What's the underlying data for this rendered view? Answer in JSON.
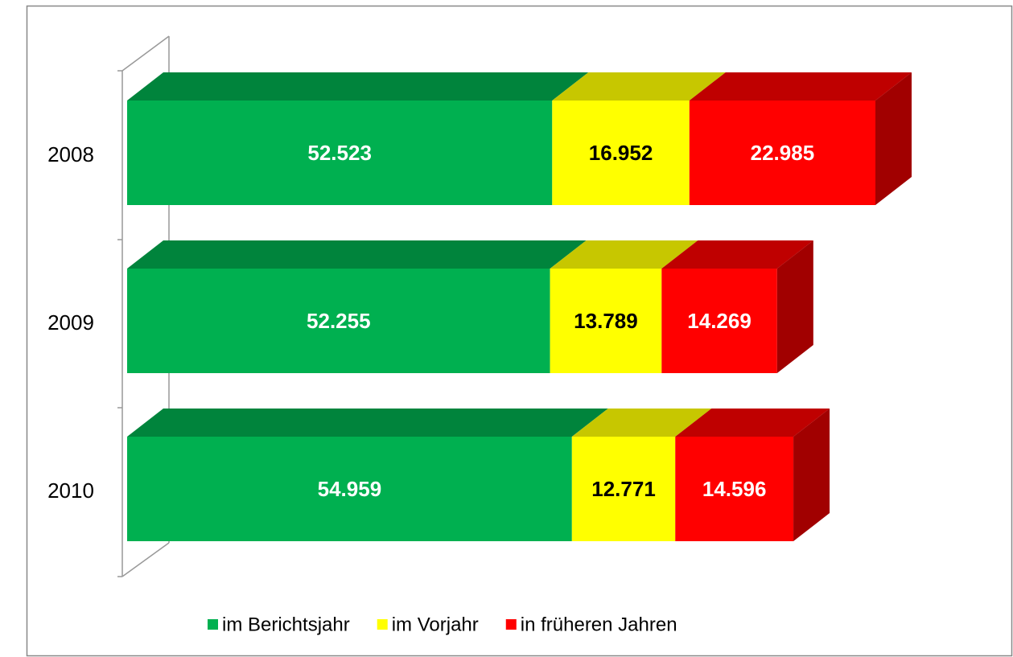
{
  "chart_data": {
    "type": "bar",
    "orientation": "horizontal",
    "stacked": true,
    "three_d": true,
    "categories": [
      "2008",
      "2009",
      "2010"
    ],
    "series": [
      {
        "name": "im Berichtsjahr",
        "color": "#00b050",
        "values": [
          52523,
          52255,
          54959
        ],
        "value_labels": [
          "52.523",
          "52.255",
          "54.959"
        ],
        "label_color": "#ffffff"
      },
      {
        "name": "im Vorjahr",
        "color": "#ffff00",
        "values": [
          16952,
          13789,
          12771
        ],
        "value_labels": [
          "16.952",
          "13.789",
          "12.771"
        ],
        "label_color": "#000000"
      },
      {
        "name": "in früheren Jahren",
        "color": "#ff0000",
        "values": [
          22985,
          14269,
          14596
        ],
        "value_labels": [
          "22.985",
          "14.269",
          "14.596"
        ],
        "label_color": "#ffffff"
      }
    ],
    "legend": "bottom"
  }
}
